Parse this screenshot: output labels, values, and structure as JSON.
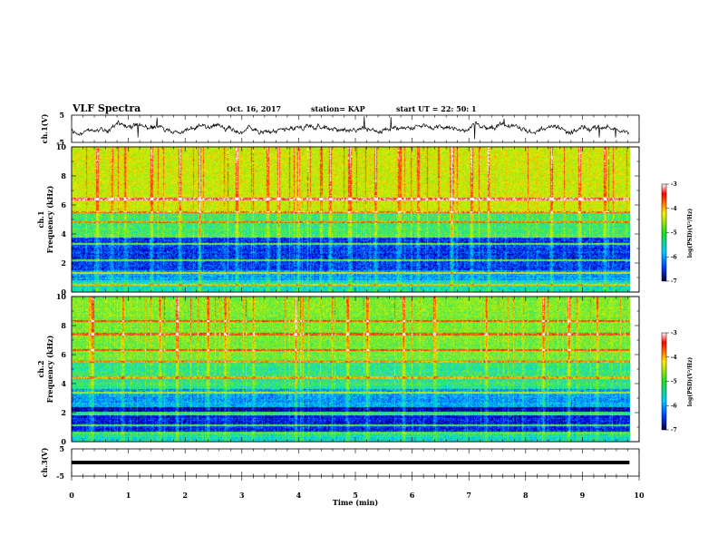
{
  "header": {
    "title": "VLF Spectra",
    "date": "Oct. 16, 2017",
    "station": "station= KAP",
    "start": "start  UT =   22: 50: 1"
  },
  "chart_data": [
    {
      "type": "line",
      "panel": "ch1-waveform",
      "ylabel": "ch.1(V)",
      "ylim": [
        -5,
        5
      ],
      "yticks": [
        "5",
        "-5"
      ],
      "xlim": [
        0,
        10
      ],
      "x_extent": [
        0,
        9.83
      ],
      "trace_baseline": 0,
      "trace_amplitude_typical": 1.2
    },
    {
      "type": "heatmap",
      "panel": "ch1-spectrogram",
      "ylabel": "ch.1",
      "ylabel2": "Frequency (kHz)",
      "ylim": [
        0,
        10
      ],
      "yticks": [
        "0",
        "2",
        "4",
        "6",
        "8",
        "10"
      ],
      "xlim": [
        0,
        10
      ],
      "x_extent": [
        0,
        9.83
      ],
      "colorbar": {
        "label": "log(PSD)(V²/Hz)",
        "range": [
          -7,
          -3
        ],
        "ticks": [
          "-3",
          "-4",
          "-5",
          "-6",
          "-7"
        ]
      },
      "bands_khz": [
        {
          "from": 0,
          "to": 0.8,
          "level": -5.6
        },
        {
          "from": 0.8,
          "to": 1.5,
          "level": -6.0
        },
        {
          "from": 1.5,
          "to": 3.9,
          "level": -6.4
        },
        {
          "from": 3.9,
          "to": 5.5,
          "level": -5.3
        },
        {
          "from": 5.5,
          "to": 10,
          "level": -4.6
        }
      ],
      "lines_khz": [
        0.5,
        1.3,
        2.2,
        3.3,
        3.8,
        4.8,
        5.5,
        6.4
      ],
      "burst_minutes": [
        0.45,
        0.7,
        0.95,
        1.4,
        1.9,
        2.25,
        2.9,
        3.45,
        3.65,
        4.0,
        4.55,
        4.9,
        5.35,
        5.75,
        6.1,
        6.7,
        7.05,
        7.35,
        8.45,
        8.95,
        9.4
      ]
    },
    {
      "type": "heatmap",
      "panel": "ch2-spectrogram",
      "ylabel": "ch.2",
      "ylabel2": "Frequency (kHz)",
      "ylim": [
        0,
        10
      ],
      "yticks": [
        "0",
        "2",
        "4",
        "6",
        "8",
        "10"
      ],
      "xlim": [
        0,
        10
      ],
      "x_extent": [
        0,
        9.83
      ],
      "colorbar": {
        "label": "log(PSD)(V²/Hz)",
        "range": [
          -7,
          -3
        ],
        "ticks": [
          "-3",
          "-4",
          "-5",
          "-6",
          "-7"
        ]
      },
      "bands_khz": [
        {
          "from": 0,
          "to": 0.5,
          "level": -5.6
        },
        {
          "from": 0.5,
          "to": 1.9,
          "level": -6.5
        },
        {
          "from": 1.9,
          "to": 2.4,
          "level": -6.7
        },
        {
          "from": 2.4,
          "to": 3.6,
          "level": -6.0
        },
        {
          "from": 3.6,
          "to": 5.6,
          "level": -5.4
        },
        {
          "from": 5.6,
          "to": 10,
          "level": -5.0
        }
      ],
      "lines_khz": [
        0.6,
        1.1,
        1.9,
        2.0,
        3.4,
        4.4,
        5.5,
        6.3,
        7.4,
        8.3
      ],
      "burst_minutes": [
        0.35,
        0.9,
        1.55,
        1.85,
        2.4,
        2.7,
        3.2,
        3.95,
        4.85,
        5.2,
        5.85,
        6.4,
        7.3,
        8.3,
        8.75,
        9.25
      ]
    },
    {
      "type": "line",
      "panel": "ch3-waveform",
      "ylabel": "ch.3(V)",
      "ylim": [
        -5,
        5
      ],
      "yticks": [
        "5",
        "-5"
      ],
      "xlim": [
        0,
        10
      ],
      "x_extent": [
        0,
        9.83
      ],
      "trace_value": 0,
      "xlabel": "Time (min)",
      "xticks": [
        "0",
        "1",
        "2",
        "3",
        "4",
        "5",
        "6",
        "7",
        "8",
        "9",
        "10"
      ]
    }
  ]
}
